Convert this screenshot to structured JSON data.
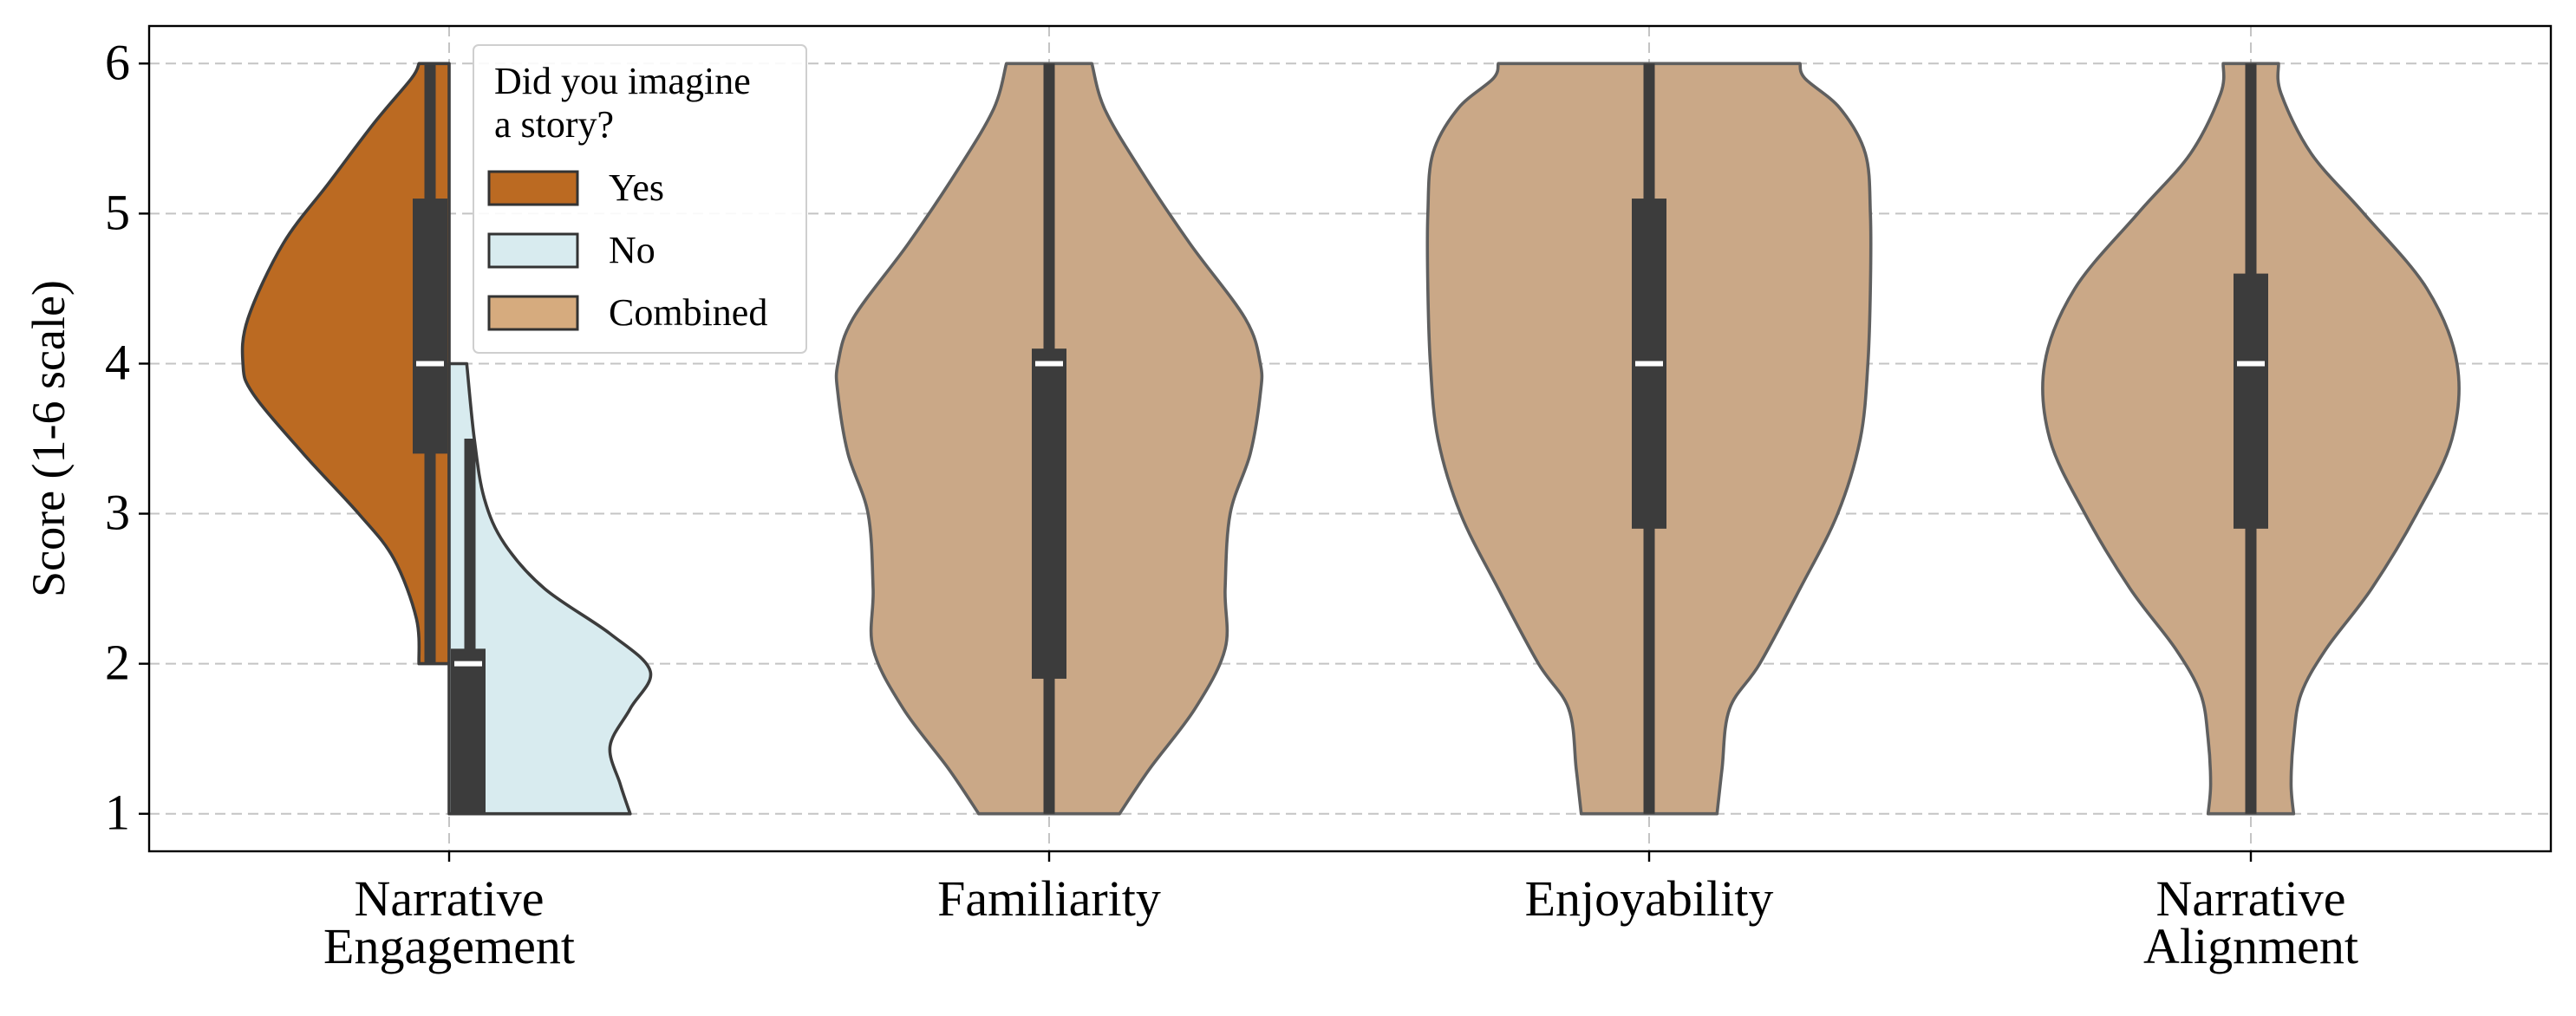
{
  "chart_data": {
    "type": "violin",
    "ylabel": "Score (1-6 scale)",
    "ylim": [
      0.75,
      6.25
    ],
    "yticks": [
      1,
      2,
      3,
      4,
      5,
      6
    ],
    "grid": true,
    "categories": [
      {
        "key": "narrative_engagement",
        "lines": [
          "Narrative",
          "Engagement"
        ]
      },
      {
        "key": "familiarity",
        "lines": [
          "Familiarity"
        ]
      },
      {
        "key": "enjoyability",
        "lines": [
          "Enjoyability"
        ]
      },
      {
        "key": "narrative_alignment",
        "lines": [
          "Narrative",
          "Alignment"
        ]
      }
    ],
    "legend": {
      "title_lines": [
        "Did you imagine",
        "a story?"
      ],
      "placement": "upper-left",
      "entries": [
        {
          "label": "Yes",
          "color": "#bb6a22"
        },
        {
          "label": "No",
          "color": "#d8ebef"
        },
        {
          "label": "Combined",
          "color": "#d6ab7e"
        }
      ]
    },
    "colors": {
      "yes": "#bb6a22",
      "no": "#d8ebef",
      "combined": "#caa887",
      "box": "#3c3c3c",
      "median": "#ffffff"
    },
    "series": [
      {
        "name": "Yes",
        "category": "narrative_engagement",
        "side": "left",
        "q1": 3.4,
        "median": 4.0,
        "q3": 5.1,
        "whisker": [
          2.0,
          6.0
        ],
        "density": [
          [
            2.0,
            0.12
          ],
          [
            2.3,
            0.13
          ],
          [
            2.7,
            0.22
          ],
          [
            3.0,
            0.36
          ],
          [
            3.4,
            0.58
          ],
          [
            3.8,
            0.78
          ],
          [
            4.0,
            0.82
          ],
          [
            4.3,
            0.8
          ],
          [
            4.8,
            0.66
          ],
          [
            5.2,
            0.48
          ],
          [
            5.6,
            0.3
          ],
          [
            5.9,
            0.15
          ],
          [
            6.0,
            0.12
          ]
        ]
      },
      {
        "name": "No",
        "category": "narrative_engagement",
        "side": "right",
        "q1": 1.0,
        "median": 2.0,
        "q3": 2.1,
        "whisker": [
          1.0,
          3.5
        ],
        "density": [
          [
            1.0,
            0.72
          ],
          [
            1.2,
            0.68
          ],
          [
            1.45,
            0.64
          ],
          [
            1.7,
            0.72
          ],
          [
            1.95,
            0.8
          ],
          [
            2.2,
            0.64
          ],
          [
            2.5,
            0.38
          ],
          [
            2.8,
            0.22
          ],
          [
            3.1,
            0.14
          ],
          [
            3.5,
            0.1
          ],
          [
            4.0,
            0.07
          ]
        ]
      },
      {
        "name": "Combined",
        "category": "familiarity",
        "q1": 1.9,
        "median": 4.0,
        "q3": 4.1,
        "whisker": [
          1.0,
          6.0
        ],
        "density": [
          [
            1.0,
            0.28
          ],
          [
            1.3,
            0.4
          ],
          [
            1.7,
            0.58
          ],
          [
            2.1,
            0.7
          ],
          [
            2.5,
            0.7
          ],
          [
            3.0,
            0.72
          ],
          [
            3.4,
            0.8
          ],
          [
            3.8,
            0.84
          ],
          [
            4.0,
            0.84
          ],
          [
            4.3,
            0.78
          ],
          [
            4.8,
            0.56
          ],
          [
            5.3,
            0.36
          ],
          [
            5.7,
            0.22
          ],
          [
            6.0,
            0.17
          ]
        ]
      },
      {
        "name": "Combined",
        "category": "enjoyability",
        "q1": 2.9,
        "median": 4.0,
        "q3": 5.1,
        "whisker": [
          1.0,
          6.0
        ],
        "density": [
          [
            1.0,
            0.27
          ],
          [
            1.3,
            0.29
          ],
          [
            1.7,
            0.32
          ],
          [
            2.0,
            0.44
          ],
          [
            2.5,
            0.6
          ],
          [
            3.0,
            0.75
          ],
          [
            3.5,
            0.84
          ],
          [
            4.0,
            0.87
          ],
          [
            4.5,
            0.88
          ],
          [
            5.0,
            0.88
          ],
          [
            5.4,
            0.86
          ],
          [
            5.7,
            0.76
          ],
          [
            5.9,
            0.62
          ],
          [
            6.0,
            0.6
          ]
        ]
      },
      {
        "name": "Combined",
        "category": "narrative_alignment",
        "q1": 2.9,
        "median": 4.0,
        "q3": 4.6,
        "whisker": [
          1.0,
          6.0
        ],
        "density": [
          [
            1.0,
            0.17
          ],
          [
            1.2,
            0.16
          ],
          [
            1.5,
            0.17
          ],
          [
            1.8,
            0.2
          ],
          [
            2.1,
            0.3
          ],
          [
            2.5,
            0.48
          ],
          [
            3.0,
            0.66
          ],
          [
            3.5,
            0.8
          ],
          [
            4.0,
            0.82
          ],
          [
            4.5,
            0.7
          ],
          [
            5.0,
            0.45
          ],
          [
            5.4,
            0.24
          ],
          [
            5.8,
            0.12
          ],
          [
            6.0,
            0.11
          ]
        ]
      }
    ]
  }
}
